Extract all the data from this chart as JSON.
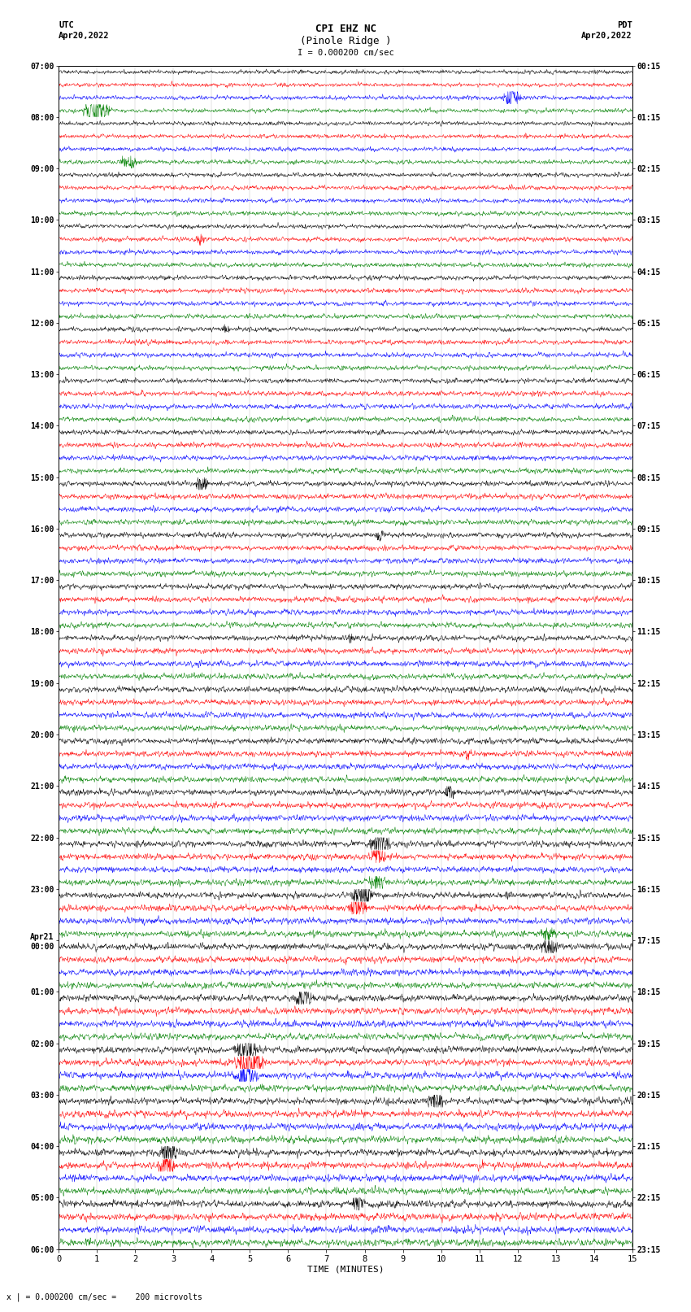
{
  "title_line1": "CPI EHZ NC",
  "title_line2": "(Pinole Ridge )",
  "scale_label": "I = 0.000200 cm/sec",
  "left_header_line1": "UTC",
  "left_header_line2": "Apr20,2022",
  "right_header_line1": "PDT",
  "right_header_line2": "Apr20,2022",
  "bottom_label": "TIME (MINUTES)",
  "bottom_note": "x | = 0.000200 cm/sec =    200 microvolts",
  "xlabel_ticks": [
    0,
    1,
    2,
    3,
    4,
    5,
    6,
    7,
    8,
    9,
    10,
    11,
    12,
    13,
    14,
    15
  ],
  "utc_labels": [
    "07:00",
    "",
    "",
    "",
    "08:00",
    "",
    "",
    "",
    "09:00",
    "",
    "",
    "",
    "10:00",
    "",
    "",
    "",
    "11:00",
    "",
    "",
    "",
    "12:00",
    "",
    "",
    "",
    "13:00",
    "",
    "",
    "",
    "14:00",
    "",
    "",
    "",
    "15:00",
    "",
    "",
    "",
    "16:00",
    "",
    "",
    "",
    "17:00",
    "",
    "",
    "",
    "18:00",
    "",
    "",
    "",
    "19:00",
    "",
    "",
    "",
    "20:00",
    "",
    "",
    "",
    "21:00",
    "",
    "",
    "",
    "22:00",
    "",
    "",
    "",
    "23:00",
    "",
    "",
    "",
    "Apr21\n00:00",
    "",
    "",
    "",
    "01:00",
    "",
    "",
    "",
    "02:00",
    "",
    "",
    "",
    "03:00",
    "",
    "",
    "",
    "04:00",
    "",
    "",
    "",
    "05:00",
    "",
    "",
    "",
    "06:00",
    "",
    ""
  ],
  "pdt_labels": [
    "00:15",
    "",
    "",
    "",
    "01:15",
    "",
    "",
    "",
    "02:15",
    "",
    "",
    "",
    "03:15",
    "",
    "",
    "",
    "04:15",
    "",
    "",
    "",
    "05:15",
    "",
    "",
    "",
    "06:15",
    "",
    "",
    "",
    "07:15",
    "",
    "",
    "",
    "08:15",
    "",
    "",
    "",
    "09:15",
    "",
    "",
    "",
    "10:15",
    "",
    "",
    "",
    "11:15",
    "",
    "",
    "",
    "12:15",
    "",
    "",
    "",
    "13:15",
    "",
    "",
    "",
    "14:15",
    "",
    "",
    "",
    "15:15",
    "",
    "",
    "",
    "16:15",
    "",
    "",
    "",
    "17:15",
    "",
    "",
    "",
    "18:15",
    "",
    "",
    "",
    "19:15",
    "",
    "",
    "",
    "20:15",
    "",
    "",
    "",
    "21:15",
    "",
    "",
    "",
    "22:15",
    "",
    "",
    "",
    "23:15",
    "",
    ""
  ],
  "n_rows": 92,
  "colors": [
    "black",
    "red",
    "blue",
    "green"
  ],
  "bg_color": "white",
  "line_width": 0.35,
  "fig_width": 8.5,
  "fig_height": 16.13,
  "dpi": 100,
  "seed": 42
}
